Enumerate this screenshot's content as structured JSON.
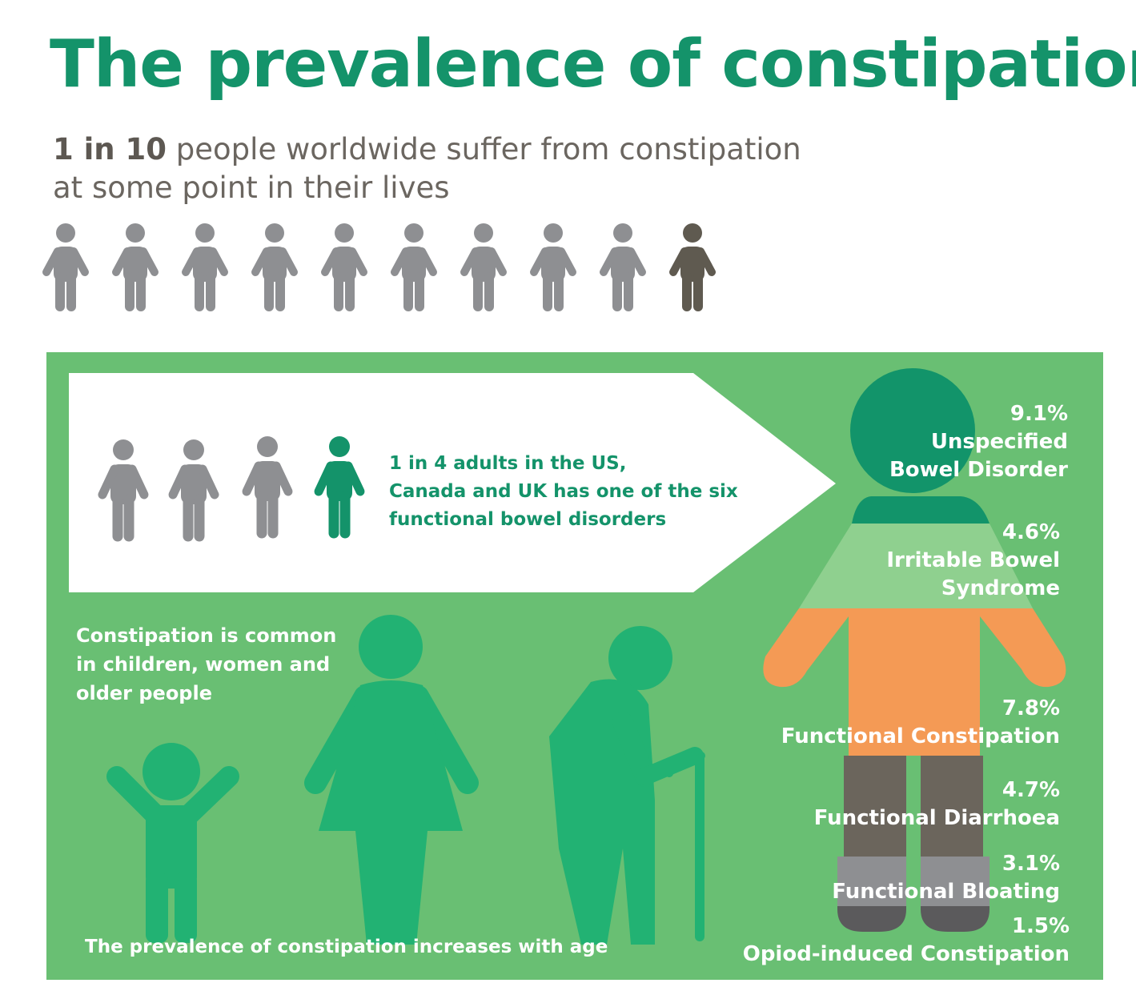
{
  "title": "The prevalence of constipation",
  "subtitle": {
    "highlight": "1 in 10",
    "line1_rest": " people worldwide suffer from constipation",
    "line2": "at some point in their lives"
  },
  "worldwide_ratio": {
    "affected": 1,
    "total": 10
  },
  "arrow_callout": {
    "line1": "1 in 4 adults in the US,",
    "line2": "Canada and UK has one of the six",
    "line3": "functional bowel disorders",
    "ratio": {
      "affected": 1,
      "total": 4
    }
  },
  "common_groups": {
    "line1": "Constipation is common",
    "line2": "in children, women and",
    "line3": "older people"
  },
  "age_caption": "The prevalence of constipation increases with age",
  "disorders": [
    {
      "percent": "9.1%",
      "line1": "Unspecified",
      "line2": "Bowel Disorder",
      "color": "#12946a"
    },
    {
      "percent": "4.6%",
      "line1": "Irritable Bowel",
      "line2": "Syndrome",
      "color": "#8fd08f"
    },
    {
      "percent": "7.8%",
      "line1": "Functional Constipation",
      "line2": "",
      "color": "#f49a55"
    },
    {
      "percent": "4.7%",
      "line1": "Functional Diarrhoea",
      "line2": "",
      "color": "#6b655c"
    },
    {
      "percent": "3.1%",
      "line1": "Functional Bloating",
      "line2": "",
      "color": "#8e8f92"
    },
    {
      "percent": "1.5%",
      "line1": "Opiod-induced Constipation",
      "line2": "",
      "color": "#5b5a5c"
    }
  ],
  "colors": {
    "brand_green": "#14936a",
    "panel_green": "#69bf73",
    "figure_green": "#22b273",
    "person_grey": "#8e8f92",
    "person_dark": "#5f5a50",
    "text_grey": "#6b6660"
  }
}
